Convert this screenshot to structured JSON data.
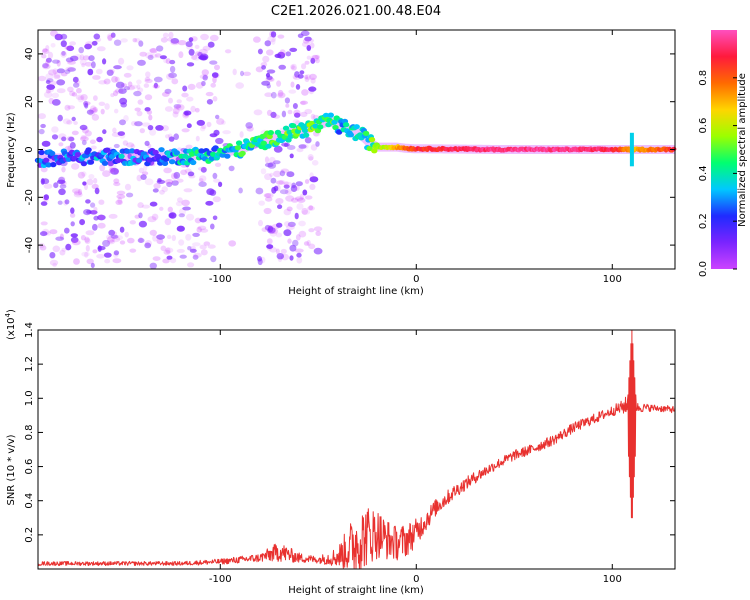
{
  "title": "C2E1.2026.021.00.48.E04",
  "colors": {
    "line": "#e8312f",
    "frame": "#000000",
    "background": "#ffffff",
    "colorbar_stops": [
      "#cc44ff",
      "#7a24ff",
      "#1f2bff",
      "#00c8ff",
      "#00ff70",
      "#9cff00",
      "#ffd500",
      "#ff6a00",
      "#ff1a3c",
      "#ff4fbf"
    ]
  },
  "chart_data": [
    {
      "type": "heatmap",
      "name": "spectrogram",
      "xlabel": "Height of straight line (km)",
      "ylabel": "Frequency (Hz)",
      "xlim": [
        -193,
        132
      ],
      "ylim": [
        -50,
        50
      ],
      "xticks": [
        -100,
        0,
        100
      ],
      "xtick_labels": [
        "-100",
        "0",
        "100"
      ],
      "yticks": [
        -40,
        -20,
        0,
        20,
        40
      ],
      "ytick_labels": [
        "-40",
        "-20",
        "0",
        "20",
        "40"
      ],
      "colorbar": {
        "label": "Normalized spectral amplitude",
        "range": [
          0,
          1
        ],
        "ticks": [
          0.0,
          0.2,
          0.4,
          0.6,
          0.8
        ],
        "tick_labels": [
          "0.0",
          "0.2",
          "0.4",
          "0.6",
          "0.8"
        ]
      },
      "ridge": {
        "x": [
          -193,
          -170,
          -150,
          -135,
          -125,
          -112,
          -100,
          -90,
          -80,
          -70,
          -60,
          -50,
          -44,
          -40,
          -33,
          -28,
          -24,
          -20,
          -15,
          -10,
          -5,
          0,
          20,
          40,
          60,
          80,
          100,
          110,
          132
        ],
        "freq": [
          -4,
          -3,
          -3,
          -3,
          -3,
          -2.5,
          -1.5,
          0,
          3,
          5.5,
          8,
          10,
          12,
          10,
          8,
          6,
          3,
          1,
          1,
          1,
          0.5,
          0.3,
          0.2,
          0,
          0,
          0,
          0,
          0,
          0
        ],
        "amplitude": [
          0.2,
          0.25,
          0.25,
          0.2,
          0.3,
          0.35,
          0.35,
          0.4,
          0.4,
          0.45,
          0.45,
          0.45,
          0.45,
          0.35,
          0.35,
          0.4,
          0.4,
          0.55,
          0.6,
          0.7,
          0.8,
          0.85,
          0.9,
          0.95,
          0.95,
          0.95,
          0.9,
          0.7,
          0.85
        ]
      },
      "noise_region": {
        "x_range": [
          -193,
          -50
        ],
        "freq_range": [
          -50,
          50
        ],
        "amplitude": 0.05
      }
    },
    {
      "type": "line",
      "name": "snr",
      "xlabel": "Height of straight line (km)",
      "ylabel": "SNR (10 * v/v)",
      "scale_note": "(x10",
      "scale_exp": "4",
      "xlim": [
        -193,
        132
      ],
      "ylim": [
        0,
        1.4
      ],
      "xticks": [
        -100,
        0,
        100
      ],
      "xtick_labels": [
        "-100",
        "0",
        "100"
      ],
      "yticks": [
        0.2,
        0.4,
        0.6,
        0.8,
        1.0,
        1.2,
        1.4
      ],
      "ytick_labels": [
        "0.2",
        "0.4",
        "0.6",
        "0.8",
        "1.0",
        "1.2",
        "1.4"
      ],
      "x": [
        -193,
        -150,
        -120,
        -100,
        -80,
        -70,
        -60,
        -50,
        -40,
        -30,
        -25,
        -20,
        -15,
        -10,
        -5,
        0,
        10,
        20,
        30,
        40,
        50,
        60,
        70,
        80,
        90,
        100,
        105,
        108,
        110,
        112,
        120,
        132
      ],
      "y": [
        0.03,
        0.03,
        0.03,
        0.04,
        0.06,
        0.09,
        0.06,
        0.05,
        0.06,
        0.12,
        0.16,
        0.18,
        0.15,
        0.13,
        0.15,
        0.2,
        0.35,
        0.45,
        0.53,
        0.6,
        0.66,
        0.7,
        0.75,
        0.82,
        0.87,
        0.92,
        0.94,
        0.95,
        0.95,
        0.94,
        0.94,
        0.93
      ],
      "noise_amp": [
        0.012,
        0.012,
        0.012,
        0.016,
        0.025,
        0.06,
        0.03,
        0.02,
        0.06,
        0.2,
        0.18,
        0.15,
        0.12,
        0.1,
        0.1,
        0.08,
        0.05,
        0.04,
        0.035,
        0.03,
        0.03,
        0.03,
        0.03,
        0.03,
        0.03,
        0.03,
        0.04,
        0.06,
        0.04,
        0.03,
        0.02,
        0.02
      ],
      "spike": {
        "x": 110,
        "min": 0.24,
        "max": 1.42
      }
    }
  ]
}
